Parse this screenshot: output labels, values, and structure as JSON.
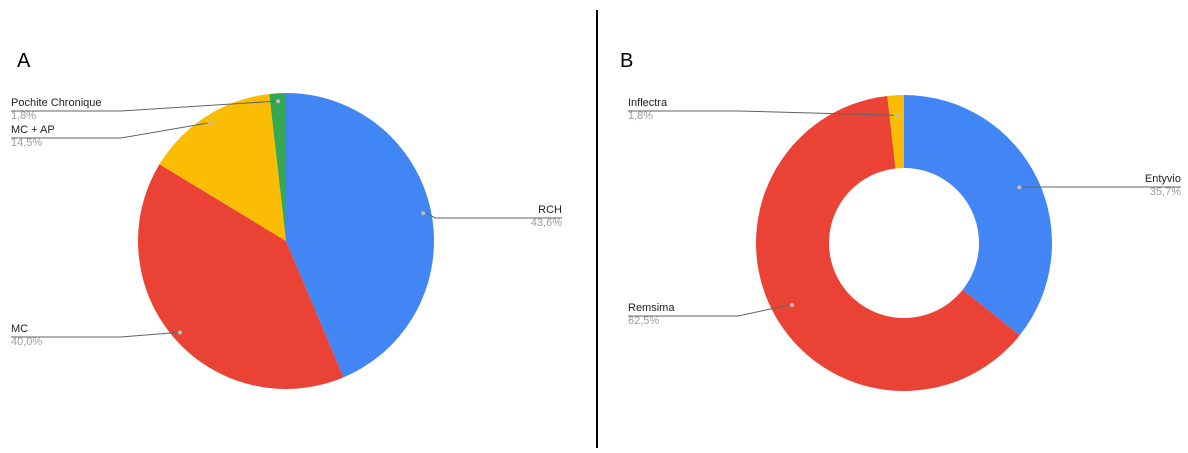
{
  "chart_data": [
    {
      "type": "pie",
      "panel": "A",
      "title": "",
      "categories": [
        "RCH",
        "MC",
        "MC + AP",
        "Pochite Chronique"
      ],
      "values": [
        43.6,
        40.0,
        14.5,
        1.8
      ],
      "value_labels": [
        "43,6%",
        "40,0%",
        "14,5%",
        "1,8%"
      ],
      "colors": [
        "#4285f4",
        "#ea4335",
        "#fbbc04",
        "#34a853"
      ],
      "donut": false,
      "legend": "none"
    },
    {
      "type": "pie",
      "panel": "B",
      "title": "",
      "categories": [
        "Entyvio",
        "Remsima",
        "Inflectra"
      ],
      "values": [
        35.7,
        62.5,
        1.8
      ],
      "value_labels": [
        "35,7%",
        "62,5%",
        "1,8%"
      ],
      "colors": [
        "#4285f4",
        "#ea4335",
        "#fbbc04"
      ],
      "donut": true,
      "legend": "none"
    }
  ],
  "divider_color": "#000000"
}
